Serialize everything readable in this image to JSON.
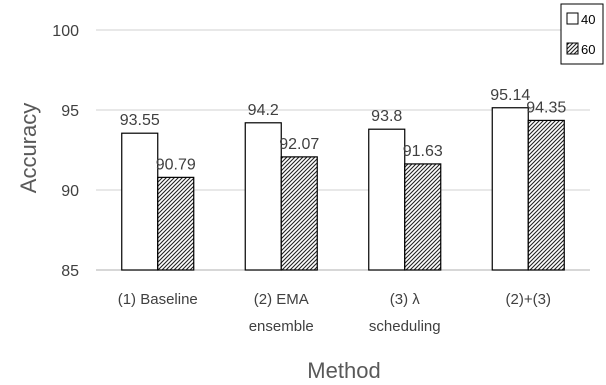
{
  "chart_data": {
    "type": "bar",
    "categories": [
      [
        "(1) Baseline"
      ],
      [
        "(2) EMA",
        "ensemble"
      ],
      [
        "(3) λ",
        "scheduling"
      ],
      [
        "(2)+(3)"
      ]
    ],
    "series": [
      {
        "name": "40",
        "values": [
          93.55,
          94.2,
          93.8,
          95.14
        ],
        "value_labels": [
          "93.55",
          "94.2",
          "93.8",
          "95.14"
        ],
        "fill": "#ffffff"
      },
      {
        "name": "60",
        "values": [
          90.79,
          92.07,
          91.63,
          94.35
        ],
        "value_labels": [
          "90.79",
          "92.07",
          "91.63",
          "94.35"
        ],
        "fill": "hatched"
      }
    ],
    "title": "",
    "xlabel": "Method",
    "ylabel": "Accuracy",
    "ylim": [
      85,
      100
    ],
    "yticks": [
      85,
      90,
      95,
      100
    ],
    "grid": true,
    "legend_position": "top-right",
    "colors": {
      "bar_stroke": "#000000",
      "grid": "#d9d9d9",
      "text": "#404040",
      "axis_title": "#595959"
    }
  }
}
